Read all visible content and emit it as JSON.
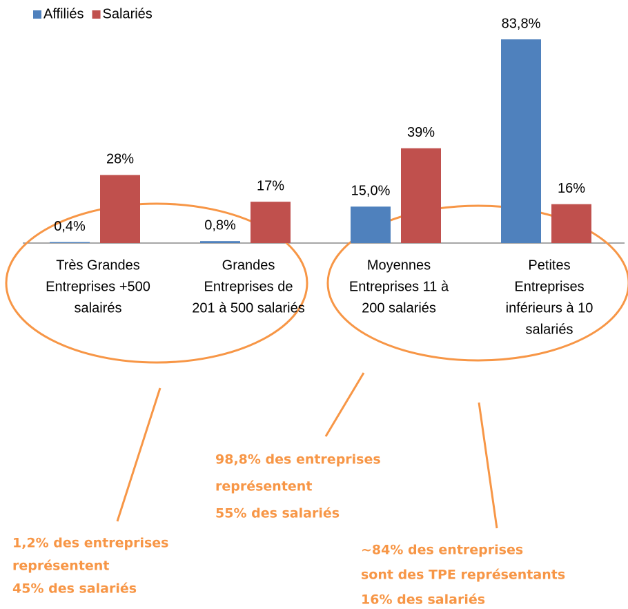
{
  "chart_data": {
    "type": "bar",
    "categories": [
      [
        "Très Grandes",
        "Entreprises +500",
        "salairés"
      ],
      [
        "Grandes",
        "Entreprises de",
        "201 à 500 salariés"
      ],
      [
        "Moyennes",
        "Entreprises 11 à",
        "200 salariés"
      ],
      [
        "Petites",
        "Entreprises",
        "inférieurs à 10",
        "salariés"
      ]
    ],
    "series": [
      {
        "name": "Affiliés",
        "color": "#4f81bd",
        "values": [
          0.4,
          0.8,
          15.0,
          83.8
        ],
        "value_labels": [
          "0,4%",
          "0,8%",
          "15,0%",
          "83,8%"
        ]
      },
      {
        "name": "Salariés",
        "color": "#c0504d",
        "values": [
          28,
          17,
          39,
          16
        ],
        "value_labels": [
          "28%",
          "17%",
          "39%",
          "16%"
        ]
      }
    ],
    "legend": "top-left",
    "annotations": [
      {
        "lines": [
          "1,2% des entreprises",
          "représentent",
          "45% des salariés"
        ],
        "color": "#f79646"
      },
      {
        "lines": [
          "98,8% des entreprises",
          "représentent",
          "55% des salariés"
        ],
        "color": "#f79646"
      },
      {
        "lines": [
          "~84% des entreprises",
          "sont des TPE représentants",
          "16% des salariés"
        ],
        "color": "#f79646"
      }
    ]
  }
}
